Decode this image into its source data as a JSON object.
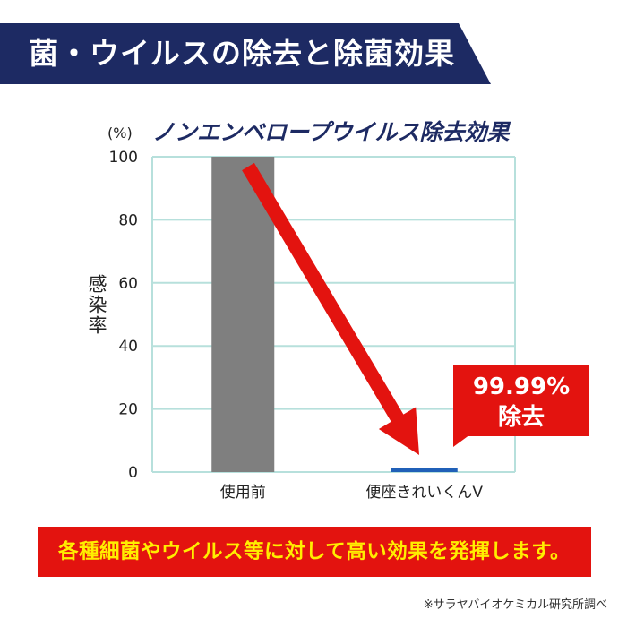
{
  "header": {
    "title": "菌・ウイルスの除去と除菌効果"
  },
  "chart_data": {
    "type": "bar",
    "title": "ノンエンベロープウイルス除去効果",
    "unit": "(%)",
    "ylabel": "感染率",
    "categories": [
      "使用前",
      "便座きれいくんV"
    ],
    "values": [
      100,
      0.01
    ],
    "ylim": [
      0,
      100
    ],
    "yticks": [
      0,
      20,
      40,
      60,
      80,
      100
    ],
    "grid": true,
    "colors": {
      "bar_before": "#7f7f7f",
      "bar_after": "#2060b8",
      "grid": "#b7e0dc",
      "arrow": "#e3130f"
    }
  },
  "callout": {
    "line1": "99.99%",
    "line2": "除去"
  },
  "footer": {
    "banner": "各種細菌やウイルス等に対して高い効果を発揮します。",
    "source": "※サラヤバイオケミカル研究所調べ"
  }
}
